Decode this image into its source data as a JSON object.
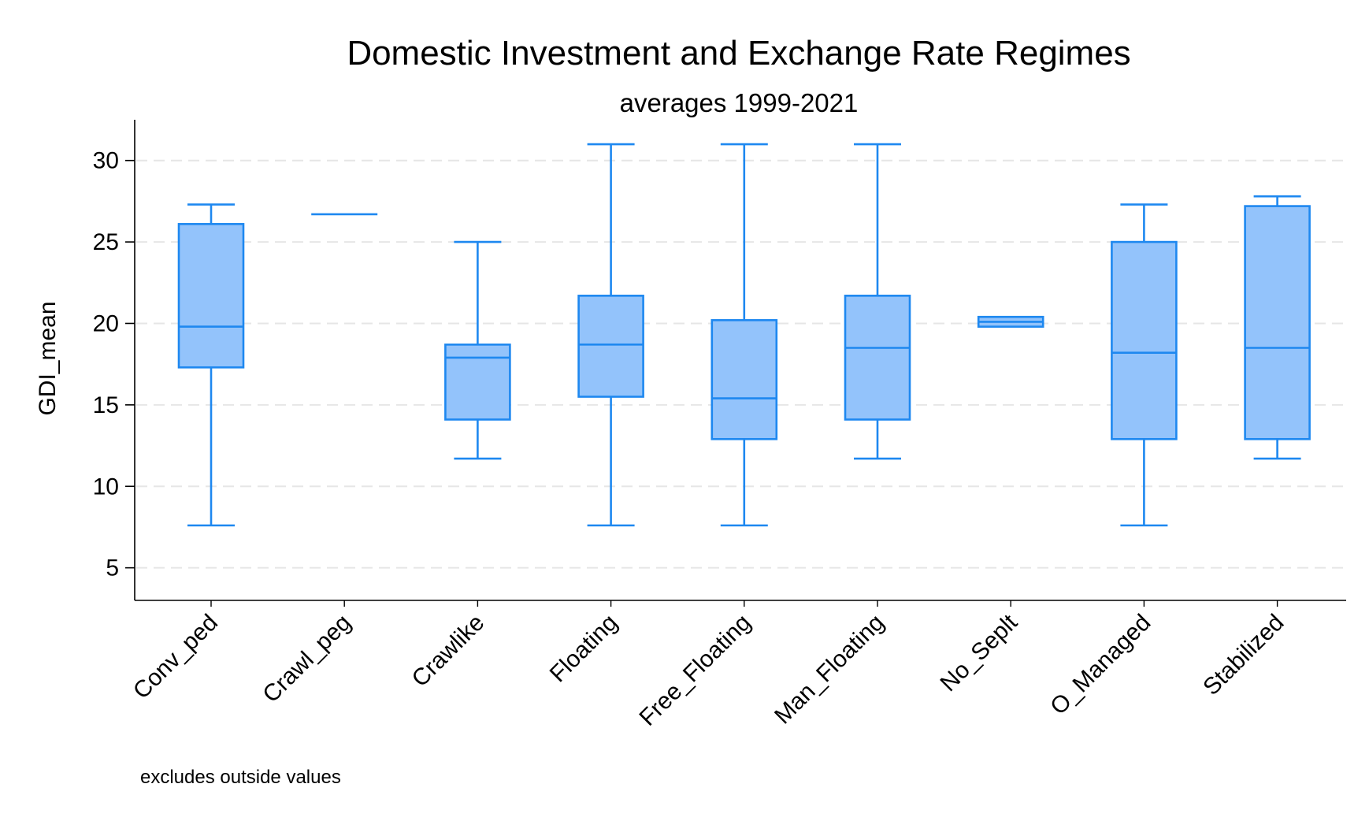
{
  "chart_data": {
    "type": "box",
    "title": "Domestic Investment and Exchange Rate Regimes",
    "subtitle": "averages 1999-2021",
    "ylabel": "GDI_mean",
    "xlabel": "",
    "ylim": [
      3,
      32.5
    ],
    "yticks": [
      5,
      10,
      15,
      20,
      25,
      30
    ],
    "grid": true,
    "note": "excludes outside values",
    "colors": {
      "box_fill": "#93c3fb",
      "box_stroke": "#1e88f0",
      "grid": "#e6e6e6",
      "axis": "#000000"
    },
    "categories": [
      "Conv_ped",
      "Crawl_peg",
      "Crawlike",
      "Floating",
      "Free_Floating",
      "Man_Floating",
      "No_Seplt",
      "O_Managed",
      "Stabilized"
    ],
    "boxes": [
      {
        "category": "Conv_ped",
        "whisker_low": 7.6,
        "q1": 17.3,
        "median": 19.8,
        "q3": 26.1,
        "whisker_high": 27.3
      },
      {
        "category": "Crawl_peg",
        "whisker_low": 26.7,
        "q1": 26.7,
        "median": 26.7,
        "q3": 26.7,
        "whisker_high": 26.7
      },
      {
        "category": "Crawlike",
        "whisker_low": 11.7,
        "q1": 14.1,
        "median": 17.9,
        "q3": 18.7,
        "whisker_high": 25.0
      },
      {
        "category": "Floating",
        "whisker_low": 7.6,
        "q1": 15.5,
        "median": 18.7,
        "q3": 21.7,
        "whisker_high": 31.0
      },
      {
        "category": "Free_Floating",
        "whisker_low": 7.6,
        "q1": 12.9,
        "median": 15.4,
        "q3": 20.2,
        "whisker_high": 31.0
      },
      {
        "category": "Man_Floating",
        "whisker_low": 11.7,
        "q1": 14.1,
        "median": 18.5,
        "q3": 21.7,
        "whisker_high": 31.0
      },
      {
        "category": "No_Seplt",
        "whisker_low": 19.8,
        "q1": 19.8,
        "median": 20.1,
        "q3": 20.4,
        "whisker_high": 20.4
      },
      {
        "category": "O_Managed",
        "whisker_low": 7.6,
        "q1": 12.9,
        "median": 18.2,
        "q3": 25.0,
        "whisker_high": 27.3
      },
      {
        "category": "Stabilized",
        "whisker_low": 11.7,
        "q1": 12.9,
        "median": 18.5,
        "q3": 27.2,
        "whisker_high": 27.8
      }
    ]
  }
}
